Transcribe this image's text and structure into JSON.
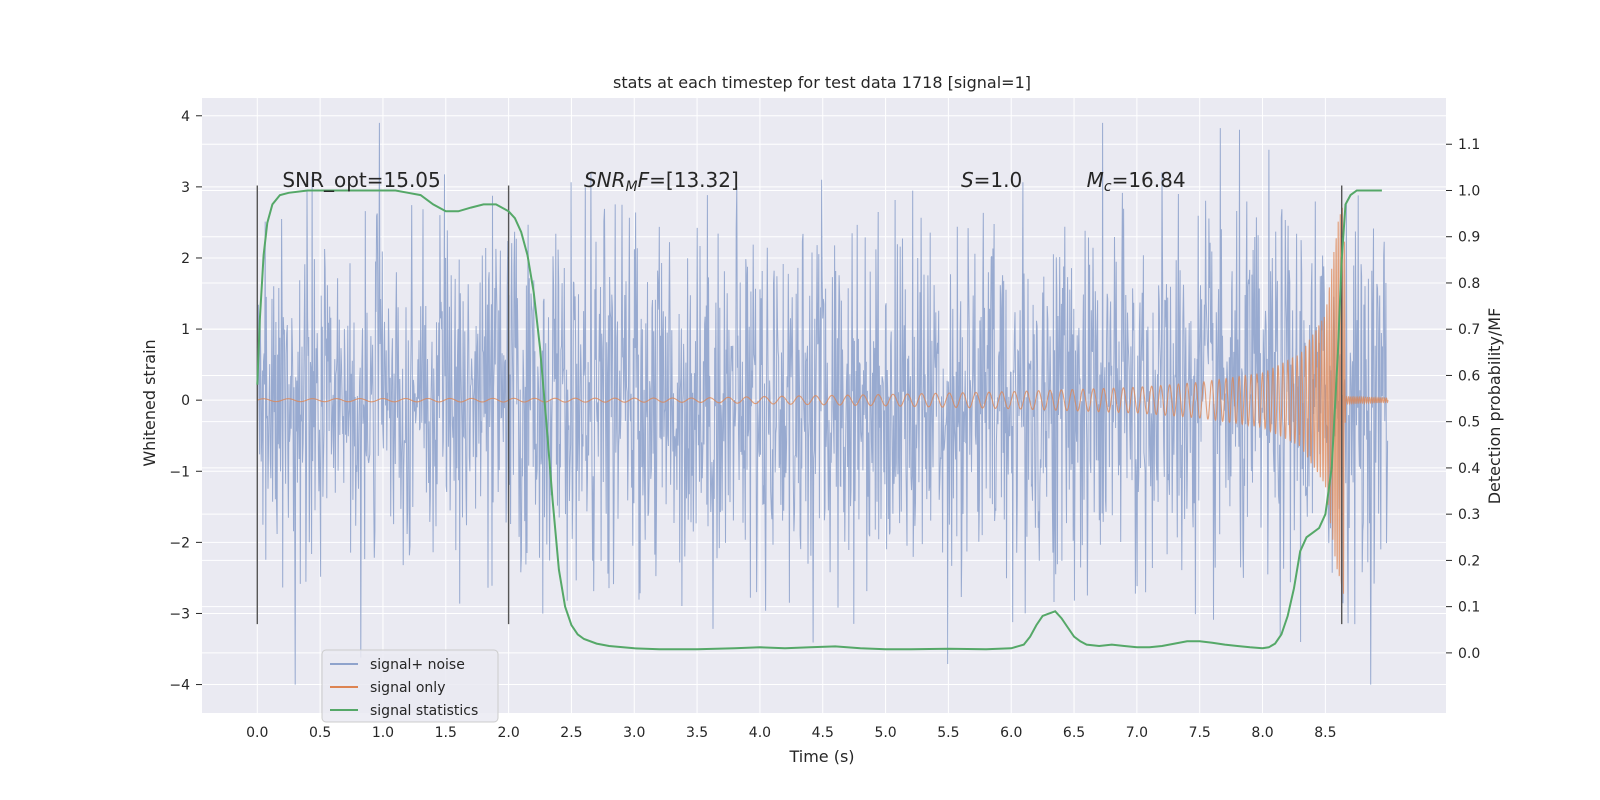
{
  "chart_data": {
    "type": "line",
    "title": "stats at each timestep for test data 1718 [signal=1]",
    "xlabel": "Time (s)",
    "ylabel": "Whitened strain",
    "y2label": "Detection probability/MF",
    "xlim": [
      -0.44,
      9.46
    ],
    "ylim": [
      -4.4,
      4.25
    ],
    "y2lim": [
      -0.13,
      1.2
    ],
    "xticks": [
      "0.0",
      "0.5",
      "1.0",
      "1.5",
      "2.0",
      "2.5",
      "3.0",
      "3.5",
      "4.0",
      "4.5",
      "5.0",
      "5.5",
      "6.0",
      "6.5",
      "7.0",
      "7.5",
      "8.0",
      "8.5"
    ],
    "yticks": [
      "4",
      "3",
      "2",
      "1",
      "0",
      "−1",
      "−2",
      "−3",
      "−4"
    ],
    "y2ticks": [
      "0.0",
      "0.1",
      "0.2",
      "0.3",
      "0.4",
      "0.5",
      "0.6",
      "0.7",
      "0.8",
      "0.9",
      "1.0",
      "1.1"
    ],
    "grid": true,
    "legend_position": "lower-left",
    "colors": {
      "background": "#eaeaf2",
      "grid": "#ffffff",
      "noise": "#8fa3cc",
      "signal": "#dd8452",
      "stats": "#55a868",
      "vline": "#555555"
    },
    "annotations": [
      {
        "x": 0.2,
        "y": 3.1,
        "parts": [
          {
            "text": "SNR_opt=15.05",
            "italic": false
          }
        ]
      },
      {
        "x": 2.6,
        "y": 3.1,
        "parts": [
          {
            "text": "SNR",
            "italic": true
          },
          {
            "text": "M",
            "italic": true,
            "sub": true
          },
          {
            "text": "F",
            "italic": true
          },
          {
            "text": "=[13.32]",
            "italic": false
          }
        ]
      },
      {
        "x": 5.6,
        "y": 3.1,
        "parts": [
          {
            "text": "S",
            "italic": true
          },
          {
            "text": "=1.0",
            "italic": false
          }
        ]
      },
      {
        "x": 6.6,
        "y": 3.1,
        "parts": [
          {
            "text": "M",
            "italic": true
          },
          {
            "text": "c",
            "italic": true,
            "sub": true
          },
          {
            "text": "=16.84",
            "italic": false
          }
        ]
      }
    ],
    "vlines": [
      {
        "x": 0.0,
        "ymin": -3.15,
        "ymax": 3.02
      },
      {
        "x": 2.0,
        "ymin": -3.15,
        "ymax": 3.02
      },
      {
        "x": 8.63,
        "ymin": -3.15,
        "ymax": 3.02
      }
    ],
    "series": [
      {
        "name": "signal+ noise",
        "kind": "noise",
        "x_start": 0.0,
        "x_end": 9.0,
        "sigma": 1.0,
        "envelope": [
          [
            0.0,
            1.9
          ],
          [
            0.5,
            1.95
          ],
          [
            1.0,
            2.0
          ],
          [
            1.5,
            2.05
          ],
          [
            2.0,
            2.0
          ],
          [
            3.0,
            2.0
          ],
          [
            4.0,
            2.05
          ],
          [
            5.0,
            2.0
          ],
          [
            6.0,
            2.1
          ],
          [
            7.0,
            2.1
          ],
          [
            8.0,
            2.15
          ],
          [
            8.6,
            2.1
          ],
          [
            9.0,
            2.05
          ]
        ]
      },
      {
        "name": "signal only",
        "kind": "chirp",
        "amplitude_envelope": [
          [
            0.0,
            0.02
          ],
          [
            3.5,
            0.03
          ],
          [
            4.0,
            0.05
          ],
          [
            5.0,
            0.08
          ],
          [
            6.0,
            0.12
          ],
          [
            7.0,
            0.18
          ],
          [
            7.5,
            0.25
          ],
          [
            8.0,
            0.38
          ],
          [
            8.3,
            0.65
          ],
          [
            8.5,
            1.2
          ],
          [
            8.6,
            2.5
          ],
          [
            8.65,
            2.8
          ],
          [
            8.66,
            0.05
          ],
          [
            9.0,
            0.03
          ]
        ],
        "frequency": [
          [
            0.0,
            5
          ],
          [
            4.0,
            7
          ],
          [
            6.0,
            10
          ],
          [
            7.5,
            15
          ],
          [
            8.3,
            28
          ],
          [
            8.6,
            60
          ]
        ],
        "x_end": 9.0
      },
      {
        "name": "signal statistics",
        "kind": "stats",
        "x": [
          0.0,
          0.02,
          0.05,
          0.08,
          0.12,
          0.18,
          0.25,
          0.4,
          0.6,
          0.8,
          1.0,
          1.1,
          1.2,
          1.3,
          1.4,
          1.5,
          1.6,
          1.7,
          1.8,
          1.9,
          2.0,
          2.05,
          2.1,
          2.15,
          2.2,
          2.25,
          2.3,
          2.35,
          2.4,
          2.45,
          2.5,
          2.55,
          2.6,
          2.7,
          2.8,
          3.0,
          3.2,
          3.5,
          3.8,
          4.0,
          4.2,
          4.4,
          4.6,
          4.8,
          5.0,
          5.2,
          5.5,
          5.8,
          6.0,
          6.1,
          6.15,
          6.2,
          6.25,
          6.3,
          6.35,
          6.4,
          6.45,
          6.5,
          6.55,
          6.6,
          6.7,
          6.8,
          6.9,
          7.0,
          7.1,
          7.2,
          7.3,
          7.4,
          7.5,
          7.6,
          7.7,
          7.8,
          7.9,
          8.0,
          8.05,
          8.1,
          8.15,
          8.2,
          8.25,
          8.3,
          8.35,
          8.4,
          8.45,
          8.5,
          8.55,
          8.6,
          8.63,
          8.66,
          8.7,
          8.75,
          8.8,
          8.9,
          8.95
        ],
        "values": [
          0.58,
          0.72,
          0.86,
          0.93,
          0.97,
          0.99,
          0.995,
          1.0,
          1.0,
          1.0,
          1.0,
          1.0,
          0.995,
          0.99,
          0.97,
          0.955,
          0.955,
          0.963,
          0.97,
          0.97,
          0.955,
          0.94,
          0.91,
          0.86,
          0.78,
          0.66,
          0.5,
          0.33,
          0.18,
          0.1,
          0.06,
          0.04,
          0.03,
          0.02,
          0.015,
          0.01,
          0.008,
          0.008,
          0.01,
          0.012,
          0.01,
          0.012,
          0.014,
          0.01,
          0.008,
          0.008,
          0.009,
          0.008,
          0.01,
          0.018,
          0.035,
          0.06,
          0.08,
          0.085,
          0.09,
          0.075,
          0.055,
          0.035,
          0.025,
          0.018,
          0.015,
          0.018,
          0.015,
          0.012,
          0.012,
          0.015,
          0.02,
          0.025,
          0.025,
          0.022,
          0.018,
          0.015,
          0.012,
          0.01,
          0.012,
          0.02,
          0.04,
          0.08,
          0.14,
          0.22,
          0.25,
          0.26,
          0.27,
          0.3,
          0.4,
          0.65,
          0.85,
          0.97,
          0.99,
          1.0,
          1.0,
          1.0,
          1.0
        ]
      }
    ]
  }
}
